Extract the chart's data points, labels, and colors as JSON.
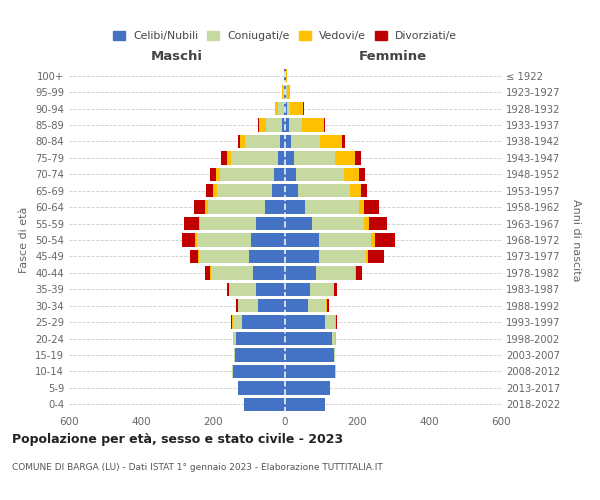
{
  "age_groups": [
    "0-4",
    "5-9",
    "10-14",
    "15-19",
    "20-24",
    "25-29",
    "30-34",
    "35-39",
    "40-44",
    "45-49",
    "50-54",
    "55-59",
    "60-64",
    "65-69",
    "70-74",
    "75-79",
    "80-84",
    "85-89",
    "90-94",
    "95-99",
    "100+"
  ],
  "birth_years": [
    "2018-2022",
    "2013-2017",
    "2008-2012",
    "2003-2007",
    "1998-2002",
    "1993-1997",
    "1988-1992",
    "1983-1987",
    "1978-1982",
    "1973-1977",
    "1968-1972",
    "1963-1967",
    "1958-1962",
    "1953-1957",
    "1948-1952",
    "1943-1947",
    "1938-1942",
    "1933-1937",
    "1928-1932",
    "1923-1927",
    "≤ 1922"
  ],
  "maschi": {
    "celibi": [
      115,
      130,
      145,
      140,
      135,
      120,
      75,
      80,
      90,
      100,
      95,
      80,
      55,
      35,
      30,
      20,
      15,
      8,
      4,
      2,
      2
    ],
    "coniugati": [
      0,
      0,
      1,
      3,
      8,
      25,
      55,
      75,
      115,
      140,
      150,
      155,
      160,
      155,
      150,
      130,
      95,
      45,
      15,
      3,
      1
    ],
    "vedovi": [
      0,
      0,
      0,
      0,
      1,
      2,
      1,
      1,
      2,
      3,
      5,
      5,
      8,
      10,
      12,
      12,
      15,
      20,
      10,
      3,
      1
    ],
    "divorziati": [
      0,
      0,
      0,
      0,
      1,
      2,
      5,
      5,
      15,
      20,
      35,
      40,
      30,
      20,
      15,
      15,
      5,
      2,
      0,
      0,
      0
    ]
  },
  "femmine": {
    "nubili": [
      110,
      125,
      140,
      135,
      130,
      110,
      65,
      70,
      85,
      95,
      95,
      75,
      55,
      35,
      30,
      25,
      18,
      12,
      5,
      3,
      2
    ],
    "coniugate": [
      0,
      0,
      1,
      4,
      10,
      30,
      50,
      65,
      110,
      130,
      145,
      145,
      150,
      145,
      135,
      115,
      80,
      35,
      10,
      2,
      0
    ],
    "vedove": [
      0,
      0,
      0,
      0,
      2,
      2,
      1,
      2,
      3,
      5,
      10,
      12,
      15,
      30,
      40,
      55,
      60,
      60,
      35,
      10,
      3
    ],
    "divorziate": [
      0,
      0,
      0,
      0,
      1,
      2,
      5,
      8,
      15,
      45,
      55,
      50,
      40,
      18,
      18,
      15,
      8,
      5,
      2,
      0,
      0
    ]
  },
  "colors": {
    "celibi": "#4472c4",
    "coniugati": "#c5d9a0",
    "vedovi": "#ffc000",
    "divorziati": "#c00000"
  },
  "xlim": 600,
  "title": "Popolazione per età, sesso e stato civile - 2023",
  "subtitle": "COMUNE DI BARGA (LU) - Dati ISTAT 1° gennaio 2023 - Elaborazione TUTTITALIA.IT",
  "ylabel_left": "Fasce di età",
  "ylabel_right": "Anni di nascita",
  "xlabel_left": "Maschi",
  "xlabel_right": "Femmine",
  "bg_color": "#ffffff",
  "grid_color": "#cccccc"
}
